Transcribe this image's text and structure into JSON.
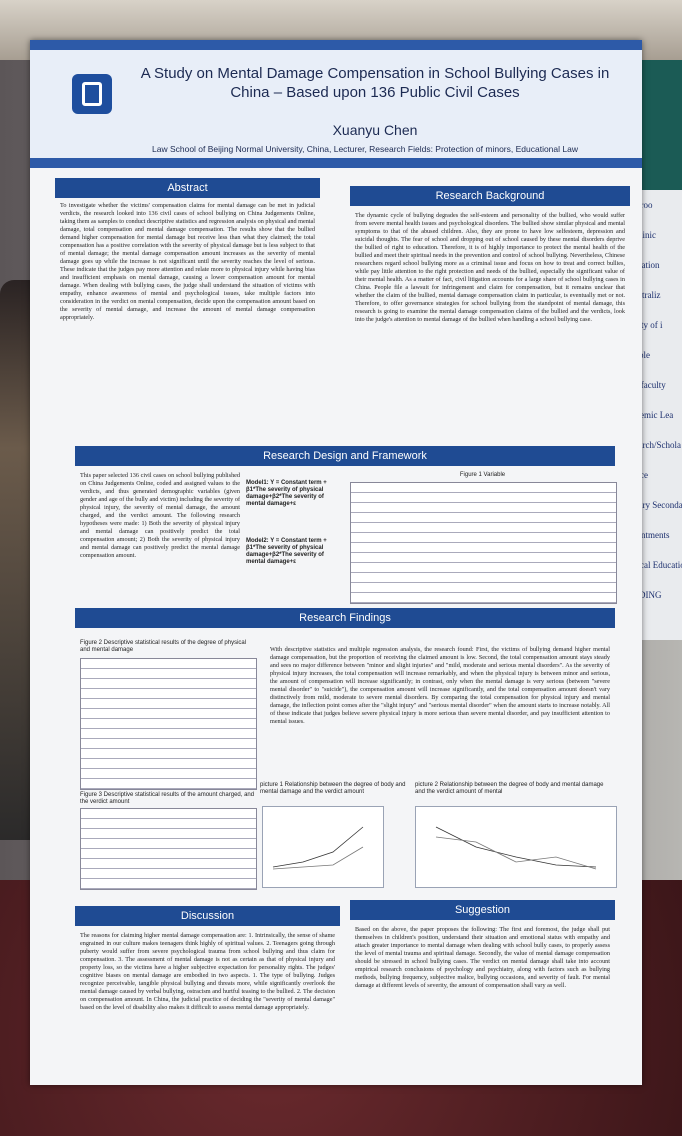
{
  "poster": {
    "title": "A Study on Mental Damage Compensation in School Bullying Cases in China – Based upon 136 Public Civil Cases",
    "author": "Xuanyu Chen",
    "affiliation": "Law School of Beijing Normal University, China, Lecturer, Research Fields: Protection of minors, Educational Law"
  },
  "sections": {
    "abstract": {
      "heading": "Abstract",
      "text": "To investigate whether the victims' compensation claims for mental damage can be met in judicial verdicts, the research looked into 136 civil cases of school bullying on China Judgements Online, taking them as samples to conduct descriptive statistics and regression analysis on physical and mental damage, total compensation and mental damage compensation. The results show that the bullied demand higher compensation for mental damage but receive less than what they claimed; the total compensation has a positive correlation with the severity of physical damage but is less subject to that of mental damage; the mental damage compensation amount increases as the severity of mental damage goes up while the increase is not significant until the severity reaches the level of serious. These indicate that the judges pay more attention and relate more to physical injury while having bias and insufficient emphasis on mental damage, causing a lower compensation amount for mental damage. When dealing with bullying cases, the judge shall understand the situation of victims with empathy, enhance awareness of mental and psychological issues, take multiple factors into consideration in the verdict on mental compensation, decide upon the compensation amount based on the severity of mental damage, and increase the amount of mental damage compensation appropriately."
    },
    "background": {
      "heading": "Research Background",
      "text": "The dynamic cycle of bullying degrades the self-esteem and personality of the bullied, who would suffer from severe mental health issues and psychological disorders. The bullied show similar physical and mental symptoms to that of the abused children. Also, they are prone to have low selfesteem, depression and suicidal thoughts. The fear of school and dropping out of school caused by these mental disorders deprive the bullied of right to education. Therefore, it is of highly importance to protect the mental health of the bullied and meet their spiritual needs in the prevention and control of school bullying. Nevertheless, Chinese researchers regard school bullying more as a criminal issue and focus on how to treat and correct bullies, while pay little attention to the right protection and needs of the bullied, especially the significant value of their mental health. As a matter of fact, civil litigation accounts for a large share of school bullying cases in China. People file a lawsuit for infringement and claim for compensation, but it remains unclear that whether the claim of the bullied, mental damage compensation claim in particular, is eventually met or not. Therefore, to offer governance strategies for school bullying from the standpoint of mental damage, this research is going to examine the mental damage compensation claims of the bullied and the verdicts, look into the judge's attention to mental damage of the bullied when handling a school bullying case."
    },
    "design": {
      "heading": "Research Design and Framework",
      "text": "This paper selected 136 civil cases on school bullying published on China Judgements Online, coded and assigned values to the verdicts, and thus generated demographic variables (given gender and age of the bully and victim) including the severity of physical injury, the severity of mental damage, the amount charged, and the verdict amount. The following research hypotheses were made: 1) Both the severity of physical injury and mental damage can positively predict the total compensation amount; 2) Both the severity of physical injury and mental damage can positively predict the mental damage compensation amount.",
      "models": [
        "Model1: Y = Constant term + β1*The severity of physical damage+β2*The severity of mental damage+ε",
        "Model2: Y = Constant term + β1*The severity of physical damage+β2*The severity of mental damage+ε"
      ],
      "figure": "Figure 1 Variable"
    },
    "findings": {
      "heading": "Research Findings",
      "text": "With descriptive statistics and multiple regression analysis, the research found: First, the victims of bullying demand higher mental damage compensation, but the proportion of receiving the claimed amount is low. Second, the total compensation amount stays steady and sees no major difference between \"minor and slight injuries\" and \"mild, moderate and serious mental disorders\". As the severity of physical injury increases, the total compensation will increase remarkably, and when the physical injury is between minor and serious, the amount of compensation will increase significantly; in contrast, only when the mental damage is very serious (between \"severe mental disorder\" to \"suicide\"), the compensation amount will increase significantly, and the total compensation amount doesn't vary distinctively from mild, moderate to severe mental disorders. By comparing the total compensation for physical injury and mental damage, the inflection point comes after the \"slight injury\" and \"serious mental disorder\" when the amount starts to increase notably. All of these indicate that judges believe severe physical injury is more serious than severe mental disorder, and pay insufficient attention to mental issues.",
      "figure2": "Figure 2 Descriptive statistical results of the degree of physical and mental damage",
      "figure3": "Figure 3 Descriptive statistical results of the amount charged, and the verdict amount",
      "picture1": "picture 1 Relationship between the degree of body and mental damage and the verdict amount",
      "picture2": "picture 2 Relationship between the degree of body and mental damage and the verdict amount of mental"
    },
    "discussion": {
      "heading": "Discussion",
      "text": "The reasons for claiming higher mental damage compensation are: 1. Intrinsically, the sense of shame engrained in our culture makes teenagers think highly of spiritual values. 2. Teenagers going through puberty would suffer from severe psychological trauma from school bullying and thus claim for compensation. 3. The assessment of mental damage is not as certain as that of physical injury and property loss, so the victims have a higher subjective expectation for personality rights. The judges' cognitive biases on mental damage are embodied in two aspects. 1. The type of bullying. Judges recognize perceivable, tangible physical bullying and threats more, while significantly overlook the mental damage caused by verbal bullying, ostracism and hurtful teasing to the bullied. 2. The decision on compensation amount. In China, the judicial practice of deciding the \"severity of mental damage\" based on the level of disability also makes it difficult to assess mental damage appropriately."
    },
    "suggestion": {
      "heading": "Suggestion",
      "text": "Based on the above, the paper proposes the following: The first and foremost, the judge shall put themselves in children's position, understand their situation and emotional status with empathy and attach greater importance to mental damage when dealing with school bully cases, to properly assess the level of mental trauma and spiritual damage. Secondly, the value of mental damage compensation should be stressed in school bullying cases. The verdict on mental damage shall take into account empirical research conclusions of psychology and psychiatry, along with factors such as bullying methods, bullying frequency, subjective malice, bullying occasions, and severity of fault. For mental damage at different levels of severity, the amount of compensation shall vary as well."
    }
  },
  "side_poster": [
    "Classroo",
    "Pre-clinic",
    "innovation",
    "decentraliz",
    "Quality of i",
    "variable",
    "Core faculty",
    "Academic Lea",
    "Research/Schola",
    "Service",
    "Primary Secondar",
    "appointments",
    "Medical Education",
    "FUNDING"
  ]
}
